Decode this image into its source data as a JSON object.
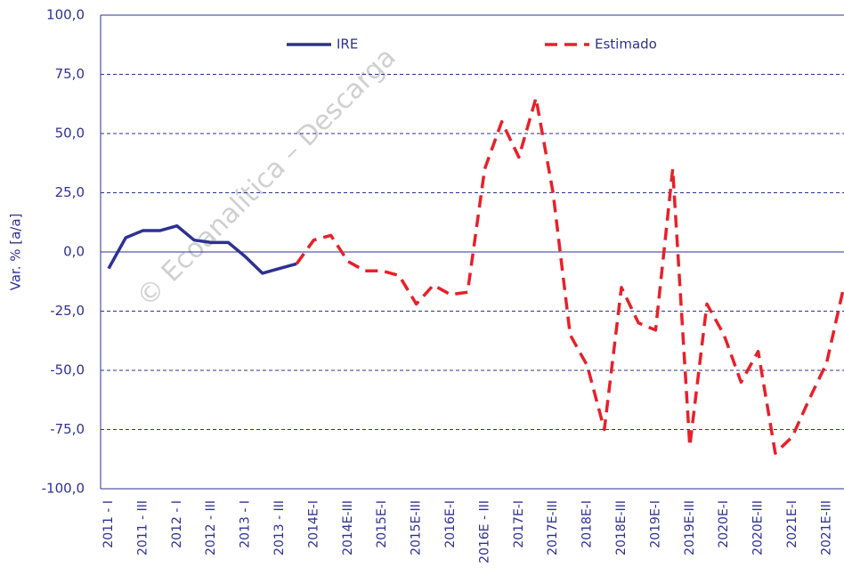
{
  "chart_data": {
    "type": "line",
    "y_label": "Var. % [a/a]",
    "watermark": "© Ecoanalítica – Descarga",
    "categories": [
      "2011 - I",
      null,
      "2011 - III",
      null,
      "2012 - I",
      null,
      "2012 - III",
      null,
      "2013 - I",
      null,
      "2013 - III",
      null,
      "2014E-I",
      null,
      "2014E-III",
      null,
      "2015E-I",
      null,
      "2015E-III",
      null,
      "2016E-I",
      null,
      "2016E - III",
      null,
      "2017E-I",
      null,
      "2017E-III",
      null,
      "2018E-I",
      null,
      "2018E-III",
      null,
      "2019E-I",
      null,
      "2019E-III",
      null,
      "2020E-I",
      null,
      "2020E-III",
      null,
      "2021E-I",
      null,
      "2021E-III",
      null
    ],
    "series": [
      {
        "name": "IRE",
        "color": "#2e3192",
        "dashed": false,
        "values": [
          -7,
          6,
          9,
          9,
          11,
          5,
          4,
          4,
          -2,
          -9,
          -7,
          -5,
          null,
          null,
          null,
          null,
          null,
          null,
          null,
          null,
          null,
          null,
          null,
          null,
          null,
          null,
          null,
          null,
          null,
          null,
          null,
          null,
          null,
          null,
          null,
          null,
          null,
          null,
          null,
          null,
          null,
          null,
          null,
          null
        ]
      },
      {
        "name": "Estimado",
        "color": "#e8202a",
        "dashed": true,
        "values": [
          null,
          null,
          null,
          null,
          null,
          null,
          null,
          null,
          null,
          null,
          null,
          -5,
          5,
          7,
          -4,
          -8,
          -8,
          -10,
          -22,
          -14,
          -18,
          -17,
          35,
          55,
          40,
          65,
          25,
          -35,
          -48,
          -75,
          -15,
          -30,
          -33,
          35,
          -82,
          -22,
          -35,
          -55,
          -42,
          -85,
          -78,
          -62,
          -47,
          -15
        ]
      }
    ],
    "ylim": [
      -100,
      100
    ],
    "yticks": [
      {
        "value": -100,
        "label": "-100,0"
      },
      {
        "value": -75,
        "label": "-75,0"
      },
      {
        "value": -50,
        "label": "-50,0"
      },
      {
        "value": -25,
        "label": "-25,0"
      },
      {
        "value": 0,
        "label": "0,0"
      },
      {
        "value": 25,
        "label": "25,0"
      },
      {
        "value": 50,
        "label": "50,0"
      },
      {
        "value": 75,
        "label": "75,0"
      },
      {
        "value": 100,
        "label": "100,0"
      }
    ],
    "grid": true
  }
}
